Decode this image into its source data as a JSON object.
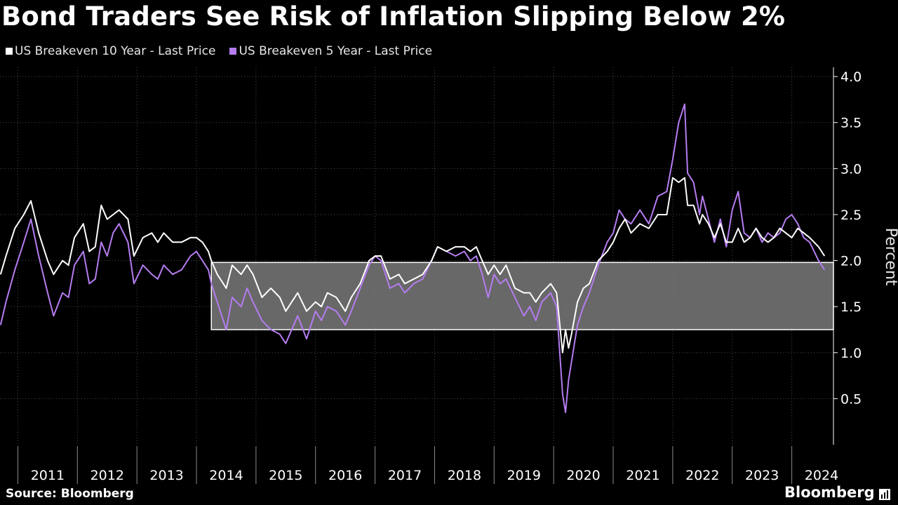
{
  "title": "Bond Traders See Risk of Inflation Slipping Below 2%",
  "legend": [
    {
      "label": "US Breakeven 10 Year - Last Price",
      "color": "#ffffff"
    },
    {
      "label": "US Breakeven 5 Year - Last Price",
      "color": "#b57cf0"
    }
  ],
  "footer": {
    "source": "Source: Bloomberg",
    "brand": "Bloomberg",
    "brand_icon": "chart-square-icon"
  },
  "chart_data": {
    "type": "line",
    "ylabel": "Percent",
    "ylim": [
      0.0,
      4.1
    ],
    "yticks": [
      "0.5",
      "1.0",
      "1.5",
      "2.0",
      "2.5",
      "3.0",
      "3.5",
      "4.0"
    ],
    "xlim": [
      2010.7,
      2024.7
    ],
    "xticks": [
      "2011",
      "2012",
      "2013",
      "2014",
      "2015",
      "2016",
      "2017",
      "2018",
      "2019",
      "2020",
      "2021",
      "2022",
      "2023",
      "2024"
    ],
    "grid": "vertical dotted",
    "legend_position": "top-left",
    "band": {
      "x": [
        2014.25,
        2024.7
      ],
      "y": [
        1.25,
        1.98
      ],
      "color": "#7a7a7a"
    },
    "series": [
      {
        "name": "US Breakeven 10 Year - Last Price",
        "color": "#ffffff",
        "x": [
          2010.71,
          2010.8,
          2010.95,
          2011.1,
          2011.22,
          2011.35,
          2011.5,
          2011.6,
          2011.75,
          2011.85,
          2011.95,
          2012.1,
          2012.2,
          2012.3,
          2012.4,
          2012.5,
          2012.6,
          2012.7,
          2012.85,
          2012.95,
          2013.1,
          2013.25,
          2013.35,
          2013.45,
          2013.6,
          2013.75,
          2013.9,
          2014.0,
          2014.1,
          2014.2,
          2014.25,
          2014.35,
          2014.5,
          2014.6,
          2014.75,
          2014.85,
          2014.95,
          2015.1,
          2015.25,
          2015.4,
          2015.5,
          2015.6,
          2015.7,
          2015.85,
          2016.0,
          2016.1,
          2016.2,
          2016.35,
          2016.5,
          2016.6,
          2016.75,
          2016.9,
          2017.0,
          2017.1,
          2017.25,
          2017.4,
          2017.5,
          2017.65,
          2017.8,
          2017.95,
          2018.05,
          2018.2,
          2018.35,
          2018.5,
          2018.6,
          2018.7,
          2018.8,
          2018.9,
          2019.0,
          2019.1,
          2019.2,
          2019.35,
          2019.5,
          2019.6,
          2019.7,
          2019.8,
          2019.95,
          2020.05,
          2020.15,
          2020.2,
          2020.25,
          2020.3,
          2020.4,
          2020.5,
          2020.6,
          2020.75,
          2020.9,
          2021.0,
          2021.1,
          2021.2,
          2021.3,
          2021.45,
          2021.6,
          2021.75,
          2021.9,
          2022.0,
          2022.1,
          2022.2,
          2022.25,
          2022.35,
          2022.45,
          2022.5,
          2022.6,
          2022.7,
          2022.8,
          2022.9,
          2023.0,
          2023.1,
          2023.2,
          2023.3,
          2023.4,
          2023.5,
          2023.6,
          2023.7,
          2023.8,
          2023.9,
          2024.0,
          2024.1,
          2024.2,
          2024.3,
          2024.45,
          2024.55
        ],
        "y": [
          1.85,
          2.05,
          2.35,
          2.5,
          2.65,
          2.3,
          2.0,
          1.85,
          2.0,
          1.95,
          2.25,
          2.4,
          2.1,
          2.15,
          2.6,
          2.45,
          2.5,
          2.55,
          2.45,
          2.05,
          2.25,
          2.3,
          2.2,
          2.3,
          2.2,
          2.2,
          2.25,
          2.25,
          2.2,
          2.1,
          2.0,
          1.85,
          1.7,
          1.95,
          1.85,
          1.95,
          1.85,
          1.6,
          1.7,
          1.6,
          1.45,
          1.55,
          1.65,
          1.45,
          1.55,
          1.5,
          1.65,
          1.6,
          1.45,
          1.6,
          1.75,
          2.0,
          2.05,
          2.05,
          1.8,
          1.85,
          1.75,
          1.8,
          1.85,
          2.0,
          2.15,
          2.1,
          2.15,
          2.15,
          2.1,
          2.15,
          2.0,
          1.85,
          1.95,
          1.85,
          1.95,
          1.7,
          1.65,
          1.65,
          1.55,
          1.65,
          1.75,
          1.65,
          1.0,
          1.25,
          1.05,
          1.2,
          1.55,
          1.7,
          1.75,
          2.0,
          2.1,
          2.2,
          2.35,
          2.45,
          2.3,
          2.4,
          2.35,
          2.5,
          2.5,
          2.9,
          2.85,
          2.9,
          2.6,
          2.6,
          2.4,
          2.5,
          2.4,
          2.25,
          2.4,
          2.2,
          2.2,
          2.35,
          2.2,
          2.25,
          2.35,
          2.25,
          2.2,
          2.25,
          2.35,
          2.3,
          2.25,
          2.35,
          2.3,
          2.25,
          2.15,
          2.05
        ]
      },
      {
        "name": "US Breakeven 5 Year - Last Price",
        "color": "#b57cf0",
        "x": [
          2010.71,
          2010.8,
          2010.95,
          2011.1,
          2011.22,
          2011.35,
          2011.5,
          2011.6,
          2011.75,
          2011.85,
          2011.95,
          2012.1,
          2012.2,
          2012.3,
          2012.4,
          2012.5,
          2012.6,
          2012.7,
          2012.85,
          2012.95,
          2013.1,
          2013.25,
          2013.35,
          2013.45,
          2013.6,
          2013.75,
          2013.9,
          2014.0,
          2014.1,
          2014.2,
          2014.25,
          2014.35,
          2014.5,
          2014.6,
          2014.75,
          2014.85,
          2014.95,
          2015.1,
          2015.25,
          2015.4,
          2015.5,
          2015.6,
          2015.7,
          2015.85,
          2016.0,
          2016.1,
          2016.2,
          2016.35,
          2016.5,
          2016.6,
          2016.75,
          2016.9,
          2017.0,
          2017.1,
          2017.25,
          2017.4,
          2017.5,
          2017.65,
          2017.8,
          2017.95,
          2018.05,
          2018.2,
          2018.35,
          2018.5,
          2018.6,
          2018.7,
          2018.8,
          2018.9,
          2019.0,
          2019.1,
          2019.2,
          2019.35,
          2019.5,
          2019.6,
          2019.7,
          2019.8,
          2019.95,
          2020.05,
          2020.15,
          2020.2,
          2020.25,
          2020.3,
          2020.4,
          2020.5,
          2020.6,
          2020.75,
          2020.9,
          2021.0,
          2021.1,
          2021.2,
          2021.3,
          2021.45,
          2021.6,
          2021.75,
          2021.9,
          2022.0,
          2022.1,
          2022.2,
          2022.25,
          2022.35,
          2022.45,
          2022.5,
          2022.6,
          2022.7,
          2022.8,
          2022.9,
          2023.0,
          2023.1,
          2023.2,
          2023.3,
          2023.4,
          2023.5,
          2023.6,
          2023.7,
          2023.8,
          2023.9,
          2024.0,
          2024.1,
          2024.2,
          2024.3,
          2024.45,
          2024.55
        ],
        "y": [
          1.3,
          1.55,
          1.9,
          2.2,
          2.45,
          2.05,
          1.65,
          1.4,
          1.65,
          1.6,
          1.95,
          2.1,
          1.75,
          1.8,
          2.2,
          2.05,
          2.3,
          2.4,
          2.2,
          1.75,
          1.95,
          1.85,
          1.8,
          1.95,
          1.85,
          1.9,
          2.05,
          2.1,
          2.0,
          1.9,
          1.75,
          1.55,
          1.25,
          1.6,
          1.5,
          1.7,
          1.55,
          1.35,
          1.25,
          1.2,
          1.1,
          1.25,
          1.4,
          1.15,
          1.45,
          1.35,
          1.5,
          1.45,
          1.3,
          1.45,
          1.7,
          1.95,
          2.05,
          2.0,
          1.7,
          1.75,
          1.65,
          1.75,
          1.8,
          2.0,
          2.15,
          2.1,
          2.05,
          2.1,
          2.0,
          2.05,
          1.85,
          1.6,
          1.85,
          1.75,
          1.8,
          1.6,
          1.4,
          1.5,
          1.35,
          1.55,
          1.65,
          1.5,
          0.55,
          0.35,
          0.7,
          0.9,
          1.3,
          1.5,
          1.65,
          1.95,
          2.2,
          2.3,
          2.55,
          2.45,
          2.4,
          2.55,
          2.4,
          2.7,
          2.75,
          3.1,
          3.5,
          3.7,
          2.95,
          2.85,
          2.5,
          2.7,
          2.45,
          2.2,
          2.45,
          2.15,
          2.55,
          2.75,
          2.3,
          2.25,
          2.35,
          2.2,
          2.3,
          2.25,
          2.3,
          2.45,
          2.5,
          2.4,
          2.25,
          2.2,
          2.0,
          1.9
        ]
      }
    ]
  }
}
